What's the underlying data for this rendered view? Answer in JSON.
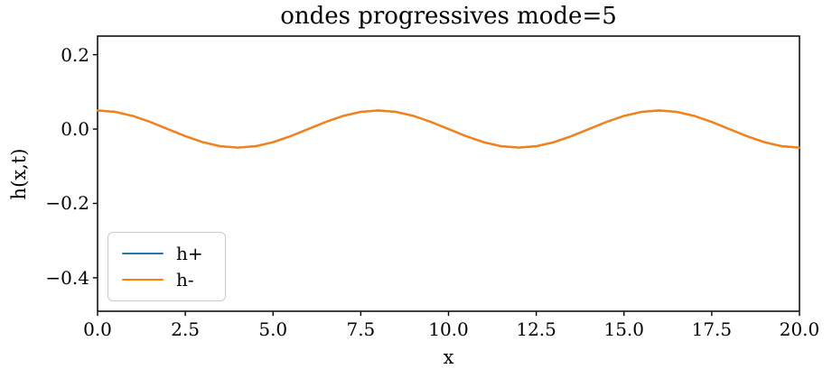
{
  "chart_data": {
    "type": "line",
    "title": "ondes progressives mode=5",
    "xlabel": "x",
    "ylabel": "h(x,t)",
    "xlim": [
      0,
      20
    ],
    "ylim": [
      -0.49,
      0.25
    ],
    "grid": false,
    "legend_position": "lower left",
    "axis_color": "#000000",
    "xticks": {
      "values": [
        0,
        2.5,
        5,
        7.5,
        10,
        12.5,
        15,
        17.5,
        20
      ],
      "labels": [
        "0.0",
        "2.5",
        "5.0",
        "7.5",
        "10.0",
        "12.5",
        "15.0",
        "17.5",
        "20.0"
      ]
    },
    "yticks": {
      "values": [
        0.2,
        0.0,
        -0.2,
        -0.4
      ],
      "labels": [
        "0.2",
        "0.0",
        "−0.2",
        "−0.4"
      ]
    },
    "x": [
      0,
      0.5,
      1,
      1.5,
      2,
      2.5,
      3,
      3.5,
      4,
      4.5,
      5,
      5.5,
      6,
      6.5,
      7,
      7.5,
      8,
      8.5,
      9,
      9.5,
      10,
      10.5,
      11,
      11.5,
      12,
      12.5,
      13,
      13.5,
      14,
      14.5,
      15,
      15.5,
      16,
      16.5,
      17,
      17.5,
      18,
      18.5,
      19,
      19.5,
      20
    ],
    "series": [
      {
        "name": "h+",
        "color": "#1f77b4",
        "values": [
          0.05,
          0.0462,
          0.0354,
          0.0191,
          0,
          -0.0191,
          -0.0354,
          -0.0462,
          -0.05,
          -0.0462,
          -0.0354,
          -0.0191,
          0,
          0.0191,
          0.0354,
          0.0462,
          0.05,
          0.0462,
          0.0354,
          0.0191,
          0,
          -0.0191,
          -0.0354,
          -0.0462,
          -0.05,
          -0.0462,
          -0.0354,
          -0.0191,
          0,
          0.0191,
          0.0354,
          0.0462,
          0.05,
          0.0462,
          0.0354,
          0.0191,
          0,
          -0.0191,
          -0.0354,
          -0.0462,
          -0.05
        ]
      },
      {
        "name": "h-",
        "color": "#ff7f0e",
        "values": [
          0.05,
          0.0462,
          0.0354,
          0.0191,
          0,
          -0.0191,
          -0.0354,
          -0.0462,
          -0.05,
          -0.0462,
          -0.0354,
          -0.0191,
          0,
          0.0191,
          0.0354,
          0.0462,
          0.05,
          0.0462,
          0.0354,
          0.0191,
          0,
          -0.0191,
          -0.0354,
          -0.0462,
          -0.05,
          -0.0462,
          -0.0354,
          -0.0191,
          0,
          0.0191,
          0.0354,
          0.0462,
          0.05,
          0.0462,
          0.0354,
          0.0191,
          0,
          -0.0191,
          -0.0354,
          -0.0462,
          -0.05
        ]
      }
    ]
  }
}
